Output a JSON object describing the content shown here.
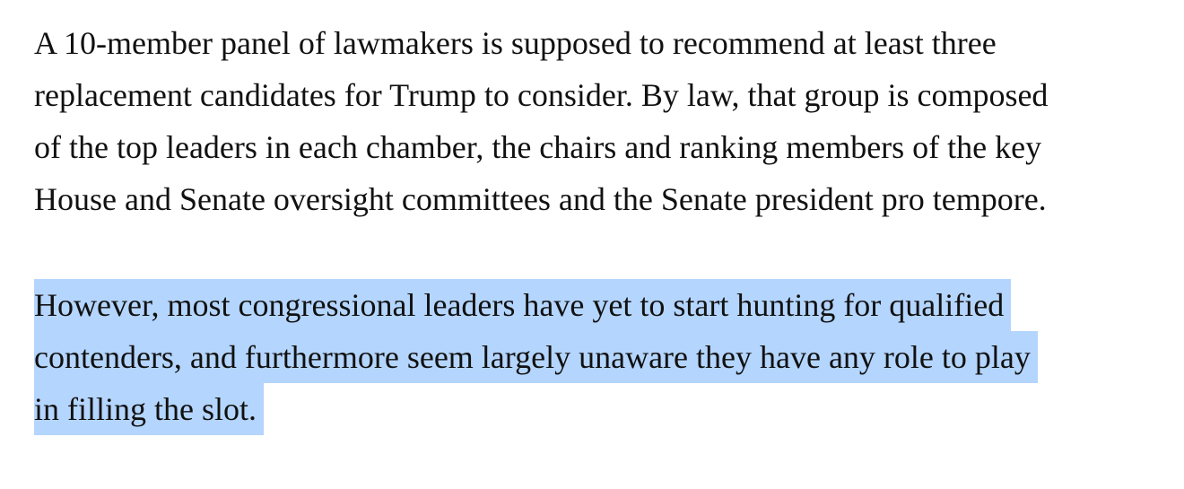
{
  "paragraphs": [
    {
      "selected": false,
      "lines": [
        "A 10-member panel of lawmakers is supposed to recommend at least three",
        "replacement candidates for Trump to consider. By law, that group is composed",
        "of the top leaders in each chamber, the chairs and ranking members of the key",
        "House and Senate oversight committees and the Senate president pro tempore."
      ]
    },
    {
      "selected": true,
      "lines": [
        "However, most congressional leaders have yet to start hunting for qualified",
        "contenders, and furthermore seem largely unaware they have any role to play",
        "in filling the slot."
      ]
    }
  ]
}
